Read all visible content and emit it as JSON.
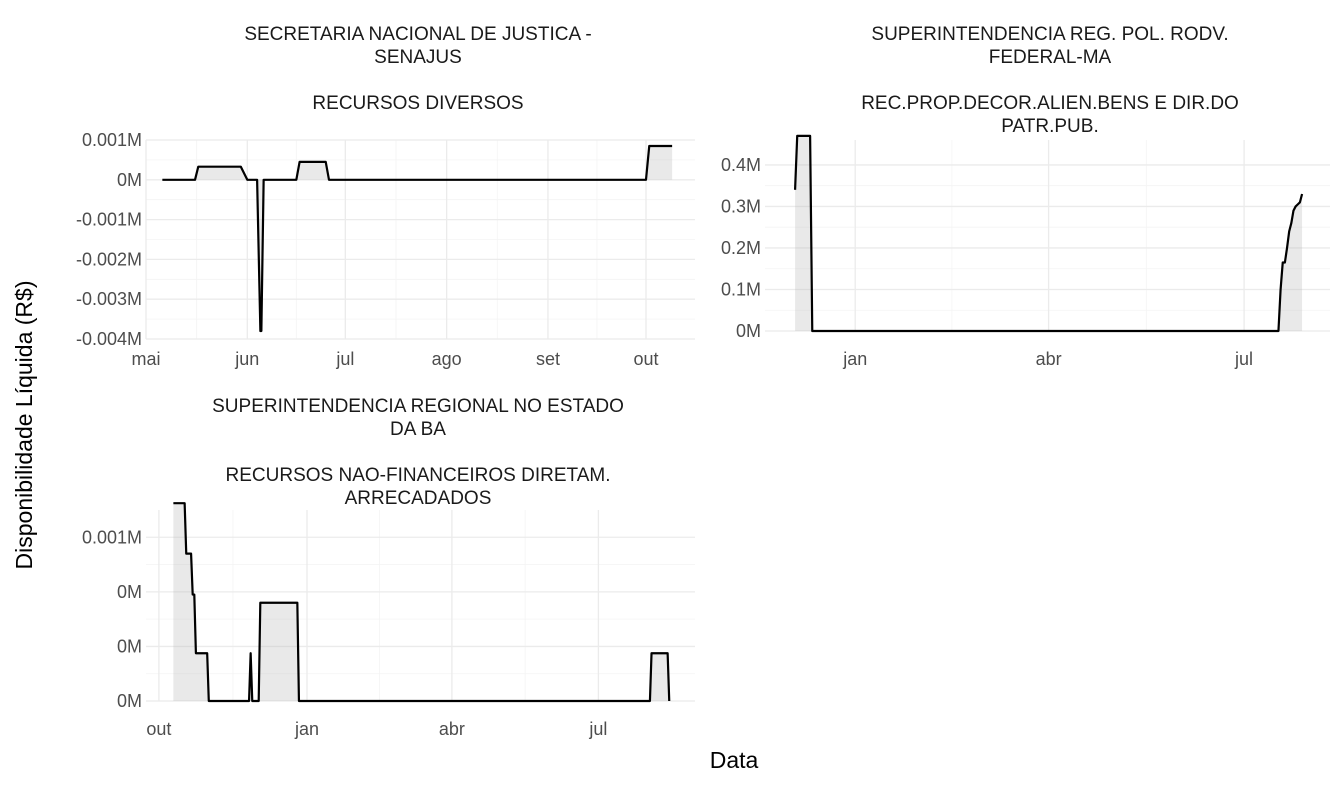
{
  "x_label": "Data",
  "y_label": "Disponibilidade Líquida (R$)",
  "chart_data": [
    {
      "type": "area",
      "title_lines": [
        "SECRETARIA NACIONAL DE JUSTICA -",
        "SENAJUS",
        "",
        "RECURSOS DIVERSOS"
      ],
      "x_ticks": [
        {
          "day": 0,
          "label": "mai"
        },
        {
          "day": 31,
          "label": "jun"
        },
        {
          "day": 61,
          "label": "jul"
        },
        {
          "day": 92,
          "label": "ago"
        },
        {
          "day": 123,
          "label": "set"
        },
        {
          "day": 153,
          "label": "out"
        }
      ],
      "x_ticks_unit": "days since 1 May",
      "xlim": [
        0,
        168
      ],
      "y_ticks": [
        {
          "value": 0.001,
          "label": "0.001M"
        },
        {
          "value": 0,
          "label": "0M"
        },
        {
          "value": -0.001,
          "label": "-0.001M"
        },
        {
          "value": -0.002,
          "label": "-0.002M"
        },
        {
          "value": -0.003,
          "label": "-0.003M"
        },
        {
          "value": -0.004,
          "label": "-0.004M"
        }
      ],
      "ylim": [
        -0.004,
        0.001
      ],
      "x": [
        5,
        15,
        16,
        29,
        31,
        33,
        34,
        35,
        35.3,
        36,
        37,
        46,
        47,
        55,
        56,
        57,
        153,
        154,
        155,
        161
      ],
      "values": [
        0,
        0,
        0.00033,
        0.00033,
        0,
        0,
        0,
        -0.0038,
        -0.0038,
        0,
        0,
        0,
        0.00045,
        0.00045,
        0,
        0,
        0,
        0.00085,
        0.00085,
        0.00085
      ]
    },
    {
      "type": "area",
      "title_lines": [
        "SUPERINTENDENCIA REG. POL. RODV.",
        "FEDERAL-MA",
        "",
        "REC.PROP.DECOR.ALIEN.BENS E DIR.DO",
        "PATR.PUB."
      ],
      "x_ticks": [
        {
          "day": 0,
          "label": "jan"
        },
        {
          "day": 90,
          "label": "abr"
        },
        {
          "day": 181,
          "label": "jul"
        }
      ],
      "x_ticks_unit": "days since 1 Jan",
      "xlim": [
        -42,
        221
      ],
      "y_ticks": [
        {
          "value": 0,
          "label": "0M"
        },
        {
          "value": 0.1,
          "label": "0.1M"
        },
        {
          "value": 0.2,
          "label": "0.2M"
        },
        {
          "value": 0.3,
          "label": "0.3M"
        },
        {
          "value": 0.4,
          "label": "0.4M"
        }
      ],
      "ylim": [
        0,
        0.46
      ],
      "x": [
        -28,
        -27,
        -22,
        -21,
        -20,
        197,
        198,
        199,
        200,
        201,
        202,
        203,
        204,
        205,
        206,
        207,
        208
      ],
      "values": [
        0.34,
        0.47,
        0.47,
        0.47,
        0,
        0,
        0.1,
        0.165,
        0.165,
        0.2,
        0.24,
        0.26,
        0.29,
        0.3,
        0.305,
        0.31,
        0.33
      ]
    },
    {
      "type": "area",
      "title_lines": [
        "SUPERINTENDENCIA REGIONAL NO ESTADO",
        "DA BA",
        "",
        "RECURSOS NAO-FINANCEIROS DIRETAM.",
        "ARRECADADOS"
      ],
      "x_ticks": [
        {
          "day": 0,
          "label": "out"
        },
        {
          "day": 92,
          "label": "jan"
        },
        {
          "day": 182,
          "label": "abr"
        },
        {
          "day": 273,
          "label": "jul"
        }
      ],
      "x_ticks_unit": "days since 1 Oct",
      "xlim": [
        -8,
        333
      ],
      "y_ticks": [
        {
          "value": 0,
          "label": "0M"
        },
        {
          "value": 0.0004,
          "label": "0M"
        },
        {
          "value": 0.0008,
          "label": "0M"
        },
        {
          "value": 0.0012,
          "label": "0.001M"
        }
      ],
      "ylim": [
        0,
        0.0014
      ],
      "x": [
        9,
        16,
        17,
        20,
        21,
        22,
        23,
        24,
        25,
        30,
        31,
        56,
        57,
        58,
        62,
        63,
        86,
        87,
        305,
        306,
        316,
        317
      ],
      "values": [
        0.00145,
        0.00145,
        0.00108,
        0.00108,
        0.00078,
        0.00078,
        0.00035,
        0.00035,
        0.00035,
        0.00035,
        0,
        0,
        0.00035,
        0,
        0,
        0.00072,
        0.00072,
        0,
        0,
        0.00035,
        0.00035,
        0
      ]
    }
  ]
}
